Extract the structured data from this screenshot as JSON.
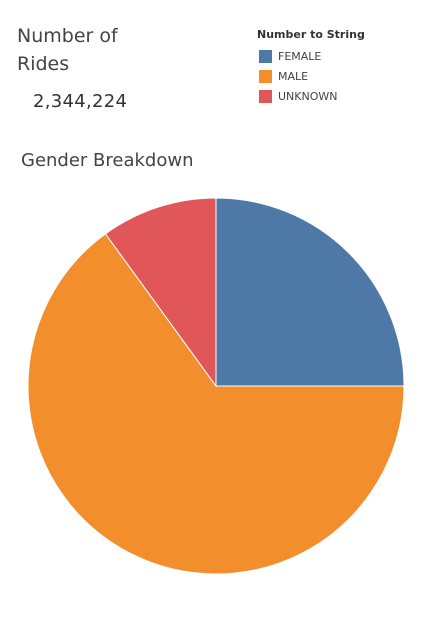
{
  "kpi": {
    "label": "Number of Rides",
    "value": "2,344,224"
  },
  "legend": {
    "title": "Number to String",
    "items": [
      {
        "label": "FEMALE",
        "color": "#4e79a7"
      },
      {
        "label": "MALE",
        "color": "#f28e2b"
      },
      {
        "label": "UNKNOWN",
        "color": "#e15759"
      }
    ]
  },
  "chart_data": {
    "type": "pie",
    "title": "Gender Breakdown",
    "slices": [
      {
        "label": "FEMALE",
        "share": 0.25,
        "color": "#4e79a7"
      },
      {
        "label": "MALE",
        "share": 0.65,
        "color": "#f28e2b"
      },
      {
        "label": "UNKNOWN",
        "share": 0.1,
        "color": "#e15759"
      }
    ],
    "legend_position": "top-right"
  }
}
